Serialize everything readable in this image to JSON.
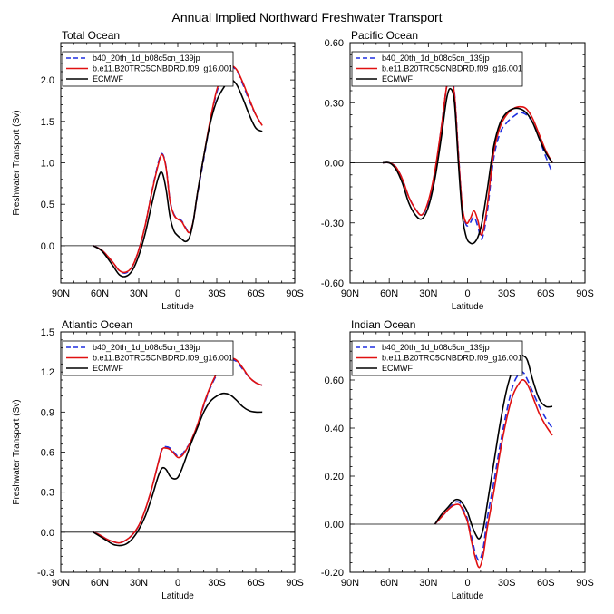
{
  "figure_title": "Annual Implied Northward Freshwater Transport",
  "legend_labels": [
    "b40_20th_1d_b08c5cn_139jp",
    "b.e11.B20TRC5CNBDRD.f09_g16.001",
    "ECMWF"
  ],
  "colors": {
    "series_1": "#1f2fe0",
    "series_2": "#e01010",
    "series_3": "#000000"
  },
  "chart_data": [
    {
      "type": "line",
      "title": "Total Ocean",
      "xlabel": "Latitude",
      "ylabel": "Freshwater Transport (Sv)",
      "xlim": [
        -90,
        90
      ],
      "ylim": [
        -0.45,
        2.45
      ],
      "xticks": [
        -90,
        -60,
        -30,
        0,
        30,
        60,
        90
      ],
      "xtick_labels": [
        "90N",
        "60N",
        "30N",
        "0",
        "30S",
        "60S",
        "90S"
      ],
      "yticks": [
        0,
        0.5,
        1,
        1.5,
        2
      ],
      "ytick_labels": [
        "0.0",
        "0.5",
        "1.0",
        "1.5",
        "2.0"
      ],
      "series": [
        {
          "name": "b40_20th_1d_b08c5cn_139jp",
          "style": "dashed",
          "x": [
            -65,
            -58,
            -50,
            -45,
            -40,
            -35,
            -30,
            -25,
            -20,
            -15,
            -12,
            -9,
            -6,
            -3,
            0,
            3,
            6,
            9,
            12,
            15,
            20,
            25,
            30,
            35,
            40,
            45,
            50,
            55,
            60,
            65
          ],
          "y": [
            0,
            -0.06,
            -0.2,
            -0.3,
            -0.33,
            -0.25,
            -0.05,
            0.25,
            0.65,
            1.0,
            1.11,
            0.95,
            0.55,
            0.38,
            0.33,
            0.3,
            0.22,
            0.16,
            0.3,
            0.6,
            1.05,
            1.5,
            1.85,
            2.05,
            2.15,
            2.12,
            1.95,
            1.75,
            1.58,
            1.45
          ]
        },
        {
          "name": "b.e11.B20TRC5CNBDRD.f09_g16.001",
          "style": "solid",
          "x": [
            -65,
            -58,
            -50,
            -45,
            -40,
            -35,
            -30,
            -25,
            -20,
            -15,
            -12,
            -9,
            -6,
            -3,
            0,
            3,
            6,
            9,
            12,
            15,
            20,
            25,
            30,
            35,
            40,
            45,
            50,
            55,
            60,
            65
          ],
          "y": [
            0,
            -0.06,
            -0.2,
            -0.3,
            -0.32,
            -0.25,
            -0.05,
            0.25,
            0.64,
            0.98,
            1.1,
            0.94,
            0.54,
            0.37,
            0.32,
            0.29,
            0.21,
            0.16,
            0.3,
            0.62,
            1.08,
            1.52,
            1.88,
            2.08,
            2.17,
            2.13,
            1.97,
            1.77,
            1.58,
            1.45
          ]
        },
        {
          "name": "ECMWF",
          "style": "solid",
          "x": [
            -65,
            -58,
            -50,
            -45,
            -40,
            -35,
            -30,
            -25,
            -20,
            -15,
            -12,
            -9,
            -6,
            -3,
            0,
            3,
            6,
            9,
            12,
            15,
            20,
            25,
            30,
            35,
            40,
            45,
            50,
            55,
            60,
            65
          ],
          "y": [
            0,
            -0.07,
            -0.24,
            -0.35,
            -0.37,
            -0.3,
            -0.12,
            0.15,
            0.5,
            0.82,
            0.88,
            0.68,
            0.35,
            0.18,
            0.12,
            0.08,
            0.05,
            0.1,
            0.3,
            0.62,
            1.08,
            1.48,
            1.75,
            1.9,
            2.0,
            1.95,
            1.78,
            1.58,
            1.42,
            1.38
          ]
        }
      ]
    },
    {
      "type": "line",
      "title": "Pacific Ocean",
      "xlabel": "Latitude",
      "ylabel": "",
      "xlim": [
        -90,
        90
      ],
      "ylim": [
        -0.6,
        0.6
      ],
      "xticks": [
        -90,
        -60,
        -30,
        0,
        30,
        60,
        90
      ],
      "xtick_labels": [
        "90N",
        "60N",
        "30N",
        "0",
        "30S",
        "60S",
        "90S"
      ],
      "yticks": [
        -0.6,
        -0.3,
        0,
        0.3,
        0.6
      ],
      "ytick_labels": [
        "-0.60",
        "-0.30",
        "0.00",
        "0.30",
        "0.60"
      ],
      "series": [
        {
          "name": "b40_20th_1d_b08c5cn_139jp",
          "style": "dashed",
          "x": [
            -65,
            -60,
            -55,
            -50,
            -45,
            -40,
            -35,
            -30,
            -25,
            -20,
            -16,
            -13,
            -10,
            -7,
            -4,
            -1,
            2,
            5,
            8,
            11,
            15,
            20,
            25,
            30,
            35,
            40,
            45,
            50,
            55,
            60,
            65
          ],
          "y": [
            0,
            0,
            -0.02,
            -0.08,
            -0.17,
            -0.23,
            -0.26,
            -0.2,
            -0.05,
            0.18,
            0.38,
            0.43,
            0.35,
            0.05,
            -0.22,
            -0.31,
            -0.3,
            -0.27,
            -0.32,
            -0.38,
            -0.25,
            0.02,
            0.15,
            0.2,
            0.23,
            0.25,
            0.24,
            0.2,
            0.12,
            0.03,
            -0.05
          ]
        },
        {
          "name": "b.e11.B20TRC5CNBDRD.f09_g16.001",
          "style": "solid",
          "x": [
            -65,
            -60,
            -55,
            -50,
            -45,
            -40,
            -35,
            -30,
            -25,
            -20,
            -16,
            -13,
            -10,
            -7,
            -4,
            -1,
            2,
            5,
            8,
            11,
            15,
            20,
            25,
            30,
            35,
            40,
            45,
            50,
            55,
            60,
            65
          ],
          "y": [
            0,
            0,
            -0.02,
            -0.08,
            -0.17,
            -0.23,
            -0.26,
            -0.19,
            -0.04,
            0.18,
            0.38,
            0.42,
            0.34,
            0.04,
            -0.22,
            -0.3,
            -0.28,
            -0.24,
            -0.29,
            -0.36,
            -0.22,
            0.05,
            0.18,
            0.24,
            0.27,
            0.28,
            0.27,
            0.22,
            0.14,
            0.06,
            0
          ]
        },
        {
          "name": "ECMWF",
          "style": "solid",
          "x": [
            -65,
            -60,
            -55,
            -50,
            -45,
            -40,
            -35,
            -30,
            -25,
            -20,
            -16,
            -13,
            -10,
            -7,
            -4,
            -1,
            2,
            5,
            8,
            11,
            15,
            20,
            25,
            30,
            35,
            40,
            45,
            50,
            55,
            60,
            65
          ],
          "y": [
            0,
            0,
            -0.03,
            -0.1,
            -0.2,
            -0.26,
            -0.28,
            -0.22,
            -0.08,
            0.13,
            0.32,
            0.37,
            0.3,
            0.0,
            -0.26,
            -0.37,
            -0.4,
            -0.4,
            -0.37,
            -0.3,
            -0.14,
            0.08,
            0.2,
            0.25,
            0.27,
            0.27,
            0.25,
            0.2,
            0.12,
            0.05,
            0
          ]
        }
      ]
    },
    {
      "type": "line",
      "title": "Atlantic Ocean",
      "xlabel": "Latitude",
      "ylabel": "Freshwater Transport (Sv)",
      "xlim": [
        -90,
        90
      ],
      "ylim": [
        -0.3,
        1.5
      ],
      "xticks": [
        -90,
        -60,
        -30,
        0,
        30,
        60,
        90
      ],
      "xtick_labels": [
        "90N",
        "60N",
        "30N",
        "0",
        "30S",
        "60S",
        "90S"
      ],
      "yticks": [
        -0.3,
        0,
        0.3,
        0.6,
        0.9,
        1.2,
        1.5
      ],
      "ytick_labels": [
        "-0.3",
        "0.0",
        "0.3",
        "0.6",
        "0.9",
        "1.2",
        "1.5"
      ],
      "series": [
        {
          "name": "b40_20th_1d_b08c5cn_139jp",
          "style": "dashed",
          "x": [
            -65,
            -60,
            -55,
            -50,
            -45,
            -40,
            -35,
            -30,
            -25,
            -20,
            -15,
            -12,
            -9,
            -6,
            -3,
            0,
            3,
            6,
            10,
            15,
            20,
            25,
            30,
            35,
            40,
            45,
            50,
            55,
            60,
            65
          ],
          "y": [
            0,
            -0.02,
            -0.05,
            -0.07,
            -0.08,
            -0.06,
            -0.02,
            0.05,
            0.17,
            0.33,
            0.52,
            0.63,
            0.64,
            0.63,
            0.6,
            0.57,
            0.58,
            0.62,
            0.68,
            0.8,
            0.95,
            1.08,
            1.18,
            1.25,
            1.29,
            1.28,
            1.22,
            1.16,
            1.12,
            1.1
          ]
        },
        {
          "name": "b.e11.B20TRC5CNBDRD.f09_g16.001",
          "style": "solid",
          "x": [
            -65,
            -60,
            -55,
            -50,
            -45,
            -40,
            -35,
            -30,
            -25,
            -20,
            -15,
            -12,
            -9,
            -6,
            -3,
            0,
            3,
            6,
            10,
            15,
            20,
            25,
            30,
            35,
            40,
            45,
            50,
            55,
            60,
            65
          ],
          "y": [
            0,
            -0.02,
            -0.05,
            -0.07,
            -0.08,
            -0.06,
            -0.02,
            0.05,
            0.17,
            0.33,
            0.52,
            0.62,
            0.63,
            0.62,
            0.59,
            0.56,
            0.57,
            0.61,
            0.68,
            0.8,
            0.96,
            1.09,
            1.19,
            1.26,
            1.3,
            1.29,
            1.23,
            1.16,
            1.12,
            1.1
          ]
        },
        {
          "name": "ECMWF",
          "style": "solid",
          "x": [
            -65,
            -60,
            -55,
            -50,
            -45,
            -40,
            -35,
            -30,
            -25,
            -20,
            -15,
            -12,
            -9,
            -6,
            -3,
            0,
            3,
            6,
            10,
            15,
            20,
            25,
            30,
            35,
            40,
            45,
            50,
            55,
            60,
            65
          ],
          "y": [
            0,
            -0.03,
            -0.06,
            -0.09,
            -0.1,
            -0.09,
            -0.05,
            0.02,
            0.12,
            0.26,
            0.42,
            0.48,
            0.47,
            0.42,
            0.4,
            0.41,
            0.47,
            0.55,
            0.66,
            0.78,
            0.9,
            0.98,
            1.02,
            1.04,
            1.03,
            0.99,
            0.94,
            0.91,
            0.9,
            0.9
          ]
        }
      ]
    },
    {
      "type": "line",
      "title": "Indian Ocean",
      "xlabel": "Latitude",
      "ylabel": "",
      "xlim": [
        -90,
        90
      ],
      "ylim": [
        -0.2,
        0.8
      ],
      "xticks": [
        -90,
        -60,
        -30,
        0,
        30,
        60,
        90
      ],
      "xtick_labels": [
        "90N",
        "60N",
        "30N",
        "0",
        "30S",
        "60S",
        "90S"
      ],
      "yticks": [
        -0.2,
        0,
        0.2,
        0.4,
        0.6
      ],
      "ytick_labels": [
        "-0.20",
        "0.00",
        "0.20",
        "0.40",
        "0.60"
      ],
      "series": [
        {
          "name": "b40_20th_1d_b08c5cn_139jp",
          "style": "dashed",
          "x": [
            -25,
            -20,
            -15,
            -10,
            -6,
            -3,
            0,
            3,
            6,
            9,
            12,
            15,
            20,
            25,
            30,
            35,
            40,
            43,
            46,
            50,
            55,
            60,
            65
          ],
          "y": [
            0,
            0.03,
            0.06,
            0.09,
            0.09,
            0.06,
            0.02,
            -0.05,
            -0.12,
            -0.15,
            -0.1,
            0.02,
            0.17,
            0.33,
            0.47,
            0.58,
            0.63,
            0.63,
            0.6,
            0.55,
            0.49,
            0.44,
            0.4
          ]
        },
        {
          "name": "b.e11.B20TRC5CNBDRD.f09_g16.001",
          "style": "solid",
          "x": [
            -25,
            -20,
            -15,
            -10,
            -6,
            -3,
            0,
            3,
            6,
            9,
            12,
            15,
            20,
            25,
            30,
            35,
            40,
            43,
            46,
            50,
            55,
            60,
            65
          ],
          "y": [
            0,
            0.03,
            0.06,
            0.08,
            0.08,
            0.05,
            0.01,
            -0.07,
            -0.14,
            -0.18,
            -0.13,
            -0.02,
            0.13,
            0.3,
            0.44,
            0.54,
            0.59,
            0.6,
            0.58,
            0.53,
            0.46,
            0.41,
            0.37
          ]
        },
        {
          "name": "ECMWF",
          "style": "solid",
          "x": [
            -25,
            -20,
            -15,
            -10,
            -6,
            -3,
            0,
            3,
            6,
            9,
            12,
            15,
            20,
            25,
            30,
            35,
            40,
            43,
            46,
            50,
            55,
            60,
            65
          ],
          "y": [
            0,
            0.04,
            0.07,
            0.1,
            0.1,
            0.08,
            0.05,
            0.0,
            -0.04,
            -0.06,
            -0.02,
            0.08,
            0.25,
            0.42,
            0.56,
            0.65,
            0.7,
            0.7,
            0.68,
            0.6,
            0.52,
            0.49,
            0.49
          ]
        }
      ]
    }
  ]
}
